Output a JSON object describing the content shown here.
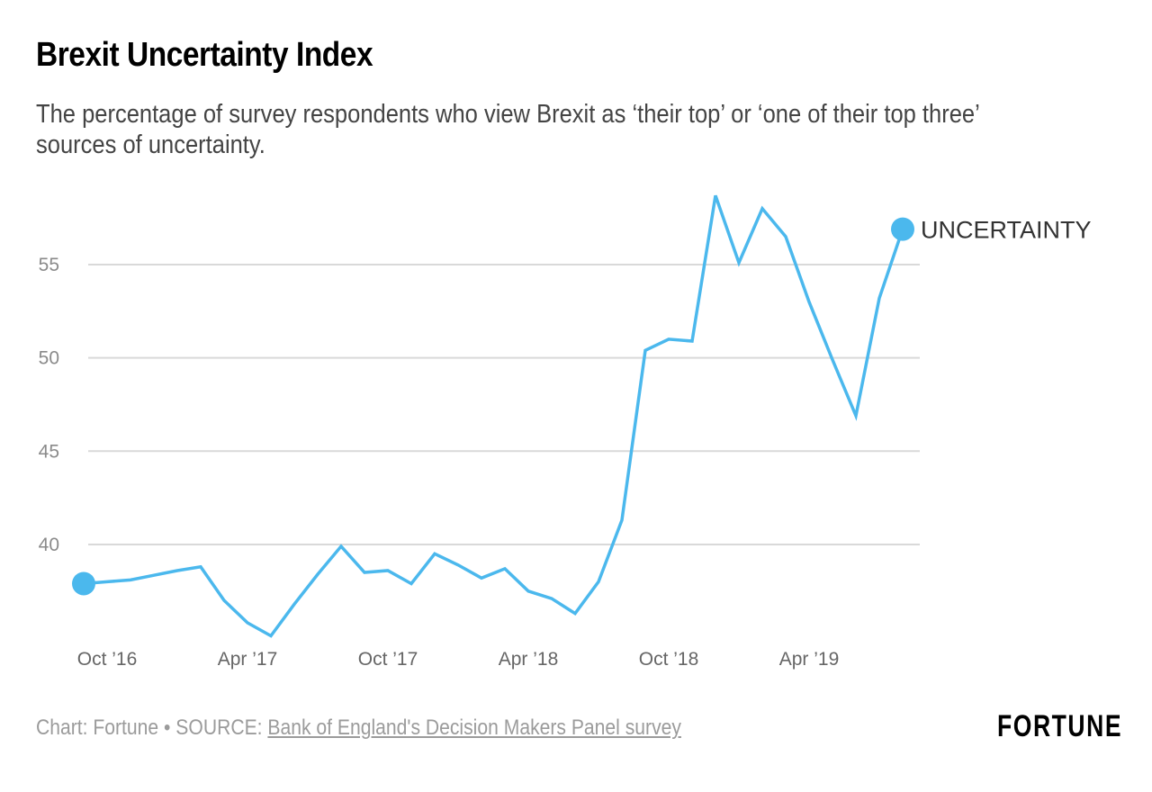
{
  "header": {
    "title": "Brexit Uncertainty Index",
    "subtitle": "The percentage of survey respondents who view Brexit as ‘their top’ or ‘one of their top three’ sources of uncertainty."
  },
  "footer": {
    "credit": "Chart: Fortune",
    "separator": "•",
    "source_label": "SOURCE:",
    "source_link": "Bank of England's Decision Makers Panel survey",
    "logo": "FORTUNE"
  },
  "colors": {
    "series": "#4bb8ed",
    "grid": "#d9d9d9"
  },
  "chart_data": {
    "type": "line",
    "title": "Brexit Uncertainty Index",
    "xlabel": "",
    "ylabel": "",
    "ylim": [
      34.5,
      59
    ],
    "yticks": [
      40,
      45,
      50,
      55
    ],
    "ytick_labels": [
      "40",
      "45",
      "50",
      "55"
    ],
    "grid": true,
    "xtick_labels": [
      "Oct ’16",
      "Apr ’17",
      "Oct ’17",
      "Apr ’18",
      "Oct ’18",
      "Apr ’19"
    ],
    "xtick_indices": [
      1,
      7,
      13,
      19,
      25,
      31
    ],
    "x": [
      "Sep 2016",
      "Oct 2016",
      "Nov 2016",
      "Dec 2016",
      "Jan 2017",
      "Feb 2017",
      "Mar 2017",
      "Apr 2017",
      "May 2017",
      "Jun 2017",
      "Jul 2017",
      "Aug 2017",
      "Sep 2017",
      "Oct 2017",
      "Nov 2017",
      "Dec 2017",
      "Jan 2018",
      "Feb 2018",
      "Mar 2018",
      "Apr 2018",
      "May 2018",
      "Jun 2018",
      "Jul 2018",
      "Aug 2018",
      "Sep 2018",
      "Oct 2018",
      "Nov 2018",
      "Dec 2018",
      "Jan 2019",
      "Feb 2019",
      "Mar 2019",
      "Apr 2019",
      "May 2019",
      "Jun 2019",
      "Jul 2019",
      "Aug 2019"
    ],
    "series": [
      {
        "name": "UNCERTAINTY",
        "values": [
          37.9,
          38.0,
          38.1,
          38.35,
          38.6,
          38.8,
          37.0,
          35.8,
          35.1,
          36.8,
          38.4,
          39.9,
          38.5,
          38.6,
          37.9,
          39.5,
          38.9,
          38.2,
          38.7,
          37.5,
          37.1,
          36.3,
          38.0,
          41.3,
          50.4,
          51.0,
          50.9,
          58.7,
          55.1,
          58.0,
          56.5,
          53.0,
          49.9,
          46.9,
          53.2,
          56.9
        ]
      }
    ],
    "legend": "end-of-line label"
  }
}
